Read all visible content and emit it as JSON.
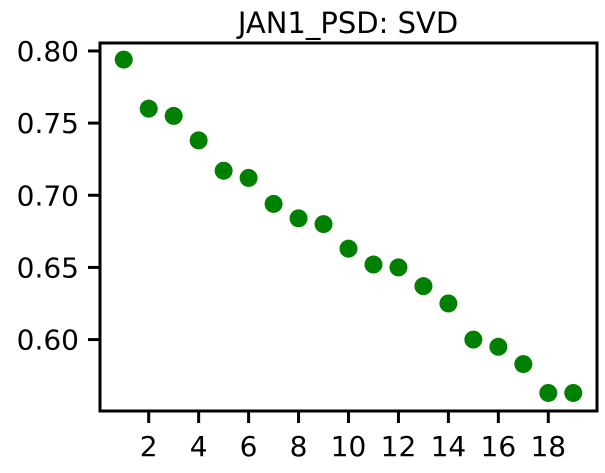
{
  "chart_data": {
    "type": "scatter",
    "title": "JAN1_PSD: SVD",
    "xlabel": "",
    "ylabel": "",
    "x": [
      1,
      2,
      3,
      4,
      5,
      6,
      7,
      8,
      9,
      10,
      11,
      12,
      13,
      14,
      15,
      16,
      17,
      18,
      19
    ],
    "y": [
      0.794,
      0.76,
      0.755,
      0.738,
      0.717,
      0.712,
      0.694,
      0.684,
      0.68,
      0.663,
      0.652,
      0.65,
      0.637,
      0.625,
      0.6,
      0.595,
      0.583,
      0.563,
      0.563
    ],
    "xlim": [
      0.05,
      19.95
    ],
    "ylim": [
      0.5505,
      0.8055
    ],
    "xticks": [
      2,
      4,
      6,
      8,
      10,
      12,
      14,
      16,
      18
    ],
    "yticks": [
      0.6,
      0.65,
      0.7,
      0.75,
      0.8
    ],
    "xtick_labels": [
      "2",
      "4",
      "6",
      "8",
      "10",
      "12",
      "14",
      "16",
      "18"
    ],
    "ytick_labels": [
      "0.60",
      "0.65",
      "0.70",
      "0.75",
      "0.80"
    ],
    "marker_color": "#008000",
    "grid": false,
    "legend": "none"
  }
}
